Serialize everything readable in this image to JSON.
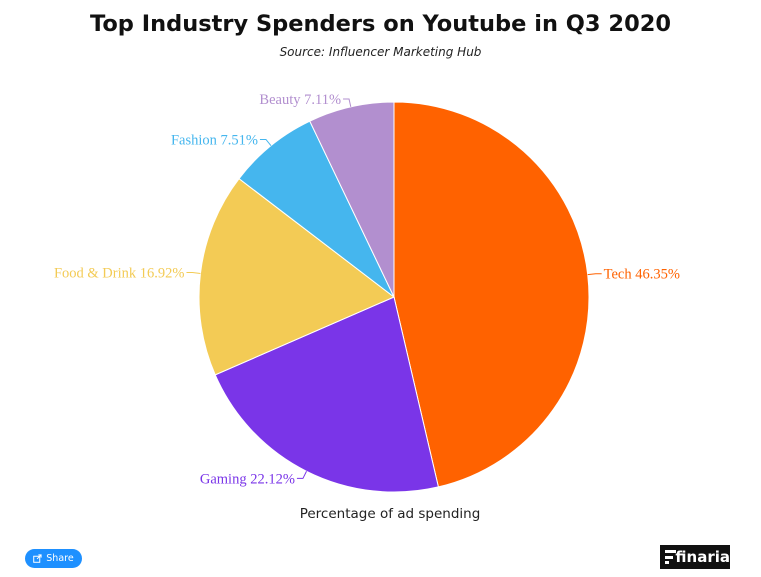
{
  "chart_data": {
    "type": "pie",
    "title": "Top Industry Spenders on Youtube in Q3 2020",
    "subtitle": "Source: Influencer Marketing Hub",
    "xlabel": "Percentage of ad spending",
    "slices": [
      {
        "label": "Tech",
        "value": 46.35,
        "display": "Tech 46.35%",
        "color": "#ff6200"
      },
      {
        "label": "Gaming",
        "value": 22.12,
        "display": "Gaming 22.12%",
        "color": "#7a35e8"
      },
      {
        "label": "Food & Drink",
        "value": 16.92,
        "display": "Food & Drink 16.92%",
        "color": "#f3cb55"
      },
      {
        "label": "Fashion",
        "value": 7.51,
        "display": "Fashion 7.51%",
        "color": "#45b6ee"
      },
      {
        "label": "Beauty",
        "value": 7.11,
        "display": "Beauty 7.11%",
        "color": "#b28fcf"
      }
    ],
    "start_angle_deg": 0,
    "direction": "clockwise"
  },
  "share": {
    "label": "Share"
  },
  "logo": {
    "text": "finaria"
  }
}
